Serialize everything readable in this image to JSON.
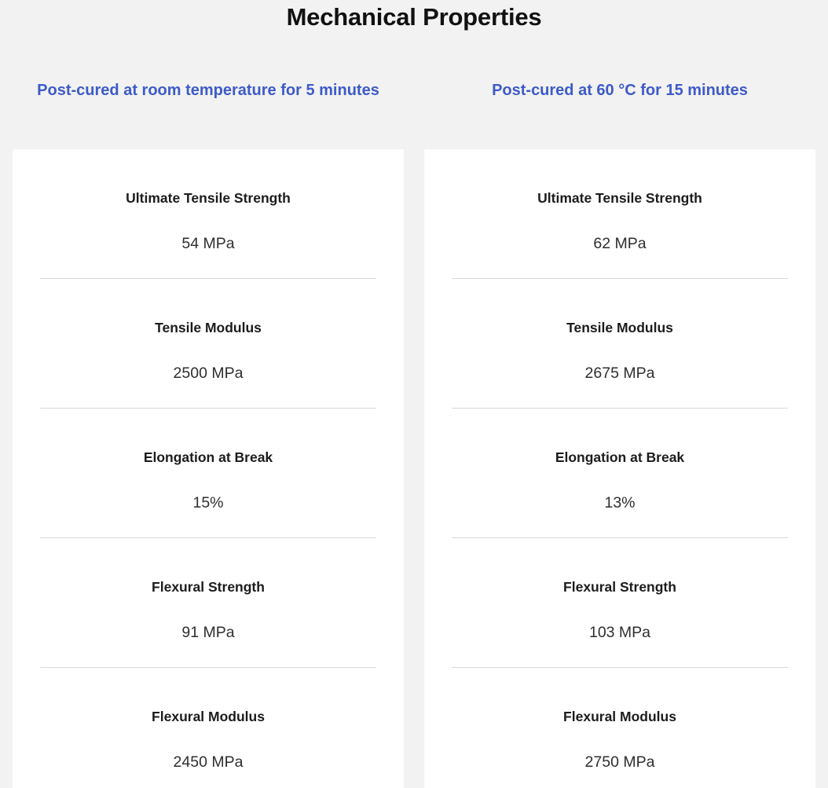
{
  "page": {
    "title": "Mechanical Properties"
  },
  "theme": {
    "background": "#f2f2f2",
    "card_background": "#ffffff",
    "accent_blue": "#3d5bc8",
    "divider": "#d8d8d8",
    "title_color": "#111111",
    "label_color": "#1c1c1c",
    "value_color": "#2e2e2e"
  },
  "columns": [
    {
      "header": "Post-cured at room temperature for 5 minutes",
      "rows": [
        {
          "label": "Ultimate Tensile Strength",
          "value": "54 MPa"
        },
        {
          "label": "Tensile Modulus",
          "value": "2500 MPa"
        },
        {
          "label": "Elongation at Break",
          "value": "15%"
        },
        {
          "label": "Flexural Strength",
          "value": "91 MPa"
        },
        {
          "label": "Flexural Modulus",
          "value": "2450 MPa"
        }
      ]
    },
    {
      "header": "Post-cured at 60 °C for 15 minutes",
      "rows": [
        {
          "label": "Ultimate Tensile Strength",
          "value": "62 MPa"
        },
        {
          "label": "Tensile Modulus",
          "value": "2675 MPa"
        },
        {
          "label": "Elongation at Break",
          "value": "13%"
        },
        {
          "label": "Flexural Strength",
          "value": "103 MPa"
        },
        {
          "label": "Flexural Modulus",
          "value": "2750 MPa"
        }
      ]
    }
  ]
}
